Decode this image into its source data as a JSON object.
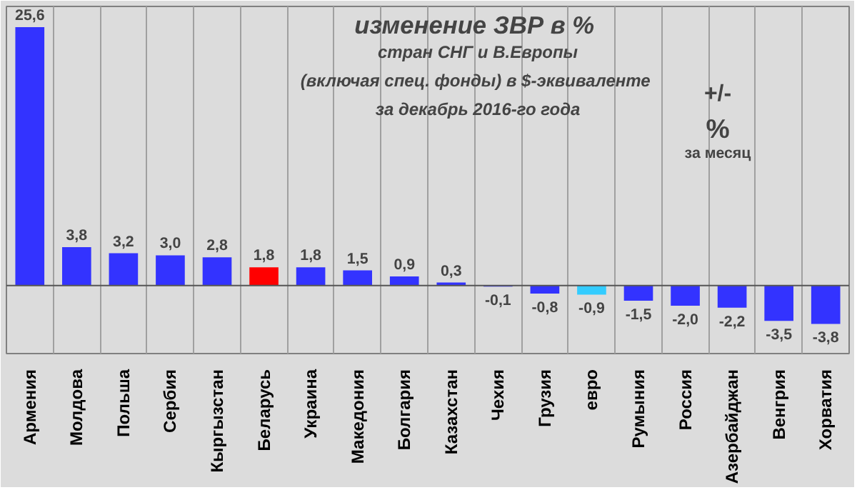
{
  "chart_data": {
    "type": "bar",
    "title": "изменение  ЗВР в %",
    "subtitle": "стран СНГ и В.Европы\n(включая  спец. фонды) в $-эквиваленте\nза декабрь 2016-го года",
    "categories": [
      "Армения",
      "Молдова",
      "Польша",
      "Сербия",
      "Кыргызстан",
      "Беларусь",
      "Украина",
      "Македония",
      "Болгария",
      "Казахстан",
      "Чехия",
      "Грузия",
      "евро",
      "Румыния",
      "Россия",
      "Азербайджан",
      "Венгрия",
      "Хорватия"
    ],
    "values": [
      25.6,
      3.8,
      3.2,
      3.0,
      2.8,
      1.8,
      1.8,
      1.5,
      0.9,
      0.3,
      -0.1,
      -0.8,
      -0.9,
      -1.5,
      -2.0,
      -2.2,
      -3.5,
      -3.8
    ],
    "colors": [
      "#3333ff",
      "#3333ff",
      "#3333ff",
      "#3333ff",
      "#3333ff",
      "#ff0000",
      "#3333ff",
      "#3333ff",
      "#3333ff",
      "#3333ff",
      "#3333ff",
      "#3333ff",
      "#33ccff",
      "#3333ff",
      "#3333ff",
      "#3333ff",
      "#3333ff",
      "#3333ff"
    ],
    "value_labels": [
      "25,6",
      "3,8",
      "3,2",
      "3,0",
      "2,8",
      "1,8",
      "1,8",
      "1,5",
      "0,9",
      "0,3",
      "-0,1",
      "-0,8",
      "-0,9",
      "-1,5",
      "-2,0",
      "-2,2",
      "-3,5",
      "-3,8"
    ],
    "annotations": [
      "+/-\n%\nза месяц"
    ],
    "grid": "x"
  }
}
